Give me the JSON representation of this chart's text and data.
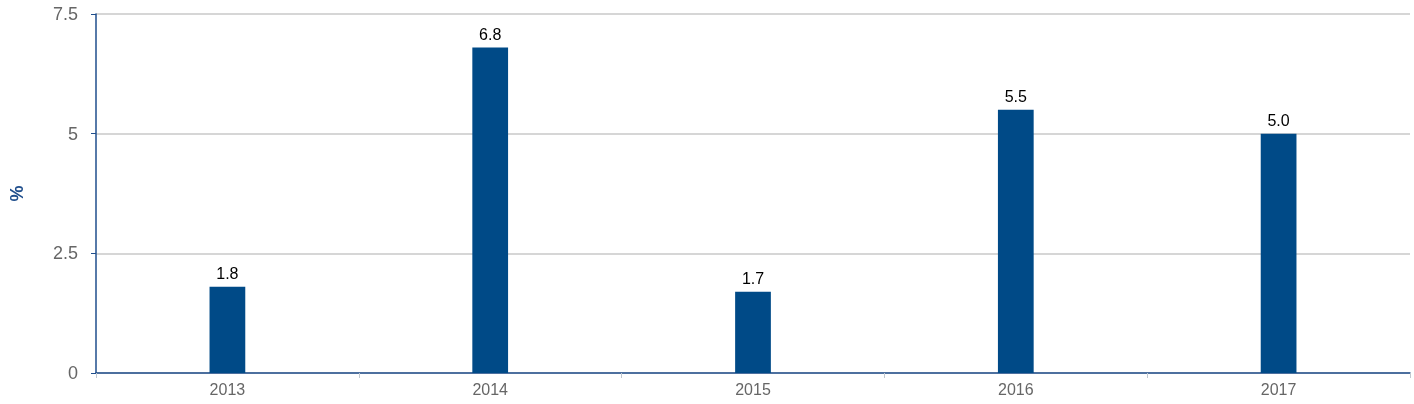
{
  "chart_data": {
    "type": "bar",
    "ylabel": "%",
    "categories": [
      "2013",
      "2014",
      "2015",
      "2016",
      "2017"
    ],
    "values": [
      1.8,
      6.8,
      1.7,
      5.5,
      5.0
    ],
    "value_labels": [
      "1.8",
      "6.8",
      "1.7",
      "5.5",
      "5.0"
    ],
    "color": "#004a87",
    "ylim": [
      0,
      7.5
    ],
    "yticks": [
      0,
      2.5,
      5,
      7.5
    ],
    "grid": "y"
  }
}
